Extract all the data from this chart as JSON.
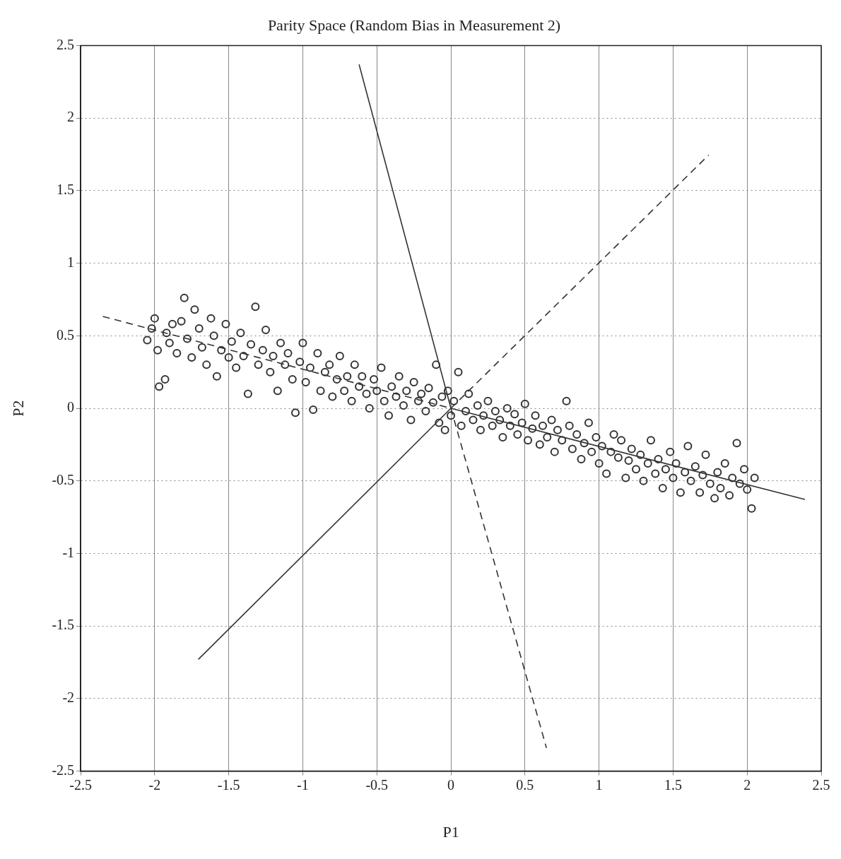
{
  "chart_data": {
    "type": "scatter",
    "title": "Parity Space (Random Bias in Measurement 2)",
    "xlabel": "P1",
    "ylabel": "P2",
    "xlim": [
      -2.5,
      2.5
    ],
    "ylim": [
      -2.5,
      2.5
    ],
    "xticks": [
      -2.5,
      -2,
      -1.5,
      -1,
      -0.5,
      0,
      0.5,
      1,
      1.5,
      2,
      2.5
    ],
    "yticks": [
      -2.5,
      -2,
      -1.5,
      -1,
      -0.5,
      0,
      0.5,
      1,
      1.5,
      2,
      2.5
    ],
    "grid": true,
    "legend": false,
    "series": [
      {
        "type": "scatter",
        "color": "#333333",
        "marker": "circle",
        "x": [
          -2.05,
          -2.02,
          -2.0,
          -1.98,
          -1.97,
          -1.93,
          -1.92,
          -1.9,
          -1.88,
          -1.85,
          -1.82,
          -1.8,
          -1.78,
          -1.75,
          -1.73,
          -1.7,
          -1.68,
          -1.65,
          -1.62,
          -1.6,
          -1.58,
          -1.55,
          -1.52,
          -1.5,
          -1.48,
          -1.45,
          -1.42,
          -1.4,
          -1.37,
          -1.35,
          -1.32,
          -1.3,
          -1.27,
          -1.25,
          -1.22,
          -1.2,
          -1.17,
          -1.15,
          -1.12,
          -1.1,
          -1.07,
          -1.05,
          -1.02,
          -1.0,
          -0.98,
          -0.95,
          -0.93,
          -0.9,
          -0.88,
          -0.85,
          -0.82,
          -0.8,
          -0.77,
          -0.75,
          -0.72,
          -0.7,
          -0.67,
          -0.65,
          -0.62,
          -0.6,
          -0.57,
          -0.55,
          -0.52,
          -0.5,
          -0.47,
          -0.45,
          -0.42,
          -0.4,
          -0.37,
          -0.35,
          -0.32,
          -0.3,
          -0.27,
          -0.25,
          -0.22,
          -0.2,
          -0.17,
          -0.15,
          -0.12,
          -0.1,
          -0.08,
          -0.06,
          -0.04,
          -0.02,
          0.0,
          0.02,
          0.05,
          0.07,
          0.1,
          0.12,
          0.15,
          0.18,
          0.2,
          0.22,
          0.25,
          0.28,
          0.3,
          0.33,
          0.35,
          0.38,
          0.4,
          0.43,
          0.45,
          0.48,
          0.5,
          0.52,
          0.55,
          0.57,
          0.6,
          0.62,
          0.65,
          0.68,
          0.7,
          0.72,
          0.75,
          0.78,
          0.8,
          0.82,
          0.85,
          0.88,
          0.9,
          0.93,
          0.95,
          0.98,
          1.0,
          1.02,
          1.05,
          1.08,
          1.1,
          1.13,
          1.15,
          1.18,
          1.2,
          1.22,
          1.25,
          1.28,
          1.3,
          1.33,
          1.35,
          1.38,
          1.4,
          1.43,
          1.45,
          1.48,
          1.5,
          1.52,
          1.55,
          1.58,
          1.6,
          1.62,
          1.65,
          1.68,
          1.7,
          1.72,
          1.75,
          1.78,
          1.8,
          1.82,
          1.85,
          1.88,
          1.9,
          1.93,
          1.95,
          1.98,
          2.0,
          2.03,
          2.05
        ],
        "values": [
          0.47,
          0.55,
          0.62,
          0.4,
          0.15,
          0.2,
          0.52,
          0.45,
          0.58,
          0.38,
          0.6,
          0.76,
          0.48,
          0.35,
          0.68,
          0.55,
          0.42,
          0.3,
          0.62,
          0.5,
          0.22,
          0.4,
          0.58,
          0.35,
          0.46,
          0.28,
          0.52,
          0.36,
          0.1,
          0.44,
          0.7,
          0.3,
          0.4,
          0.54,
          0.25,
          0.36,
          0.12,
          0.45,
          0.3,
          0.38,
          0.2,
          -0.03,
          0.32,
          0.45,
          0.18,
          0.28,
          -0.01,
          0.38,
          0.12,
          0.25,
          0.3,
          0.08,
          0.2,
          0.36,
          0.12,
          0.22,
          0.05,
          0.3,
          0.15,
          0.22,
          0.1,
          0.0,
          0.2,
          0.12,
          0.28,
          0.05,
          -0.05,
          0.15,
          0.08,
          0.22,
          0.02,
          0.12,
          -0.08,
          0.18,
          0.05,
          0.1,
          -0.02,
          0.14,
          0.04,
          0.3,
          -0.1,
          0.08,
          -0.15,
          0.12,
          -0.05,
          0.05,
          0.25,
          -0.12,
          -0.02,
          0.1,
          -0.08,
          0.02,
          -0.15,
          -0.05,
          0.05,
          -0.12,
          -0.02,
          -0.08,
          -0.2,
          0.0,
          -0.12,
          -0.04,
          -0.18,
          -0.1,
          0.03,
          -0.22,
          -0.14,
          -0.05,
          -0.25,
          -0.12,
          -0.2,
          -0.08,
          -0.3,
          -0.15,
          -0.22,
          0.05,
          -0.12,
          -0.28,
          -0.18,
          -0.35,
          -0.24,
          -0.1,
          -0.3,
          -0.2,
          -0.38,
          -0.26,
          -0.45,
          -0.3,
          -0.18,
          -0.34,
          -0.22,
          -0.48,
          -0.36,
          -0.28,
          -0.42,
          -0.32,
          -0.5,
          -0.38,
          -0.22,
          -0.45,
          -0.35,
          -0.55,
          -0.42,
          -0.3,
          -0.48,
          -0.38,
          -0.58,
          -0.44,
          -0.26,
          -0.5,
          -0.4,
          -0.58,
          -0.46,
          -0.32,
          -0.52,
          -0.62,
          -0.44,
          -0.55,
          -0.38,
          -0.6,
          -0.48,
          -0.24,
          -0.52,
          -0.42,
          -0.56,
          -0.69,
          -0.48
        ]
      },
      {
        "type": "line",
        "color": "#333333",
        "line_style": "solid",
        "marker": "none",
        "x": [
          -0.62,
          0
        ],
        "values": [
          2.37,
          0
        ]
      },
      {
        "type": "line",
        "color": "#333333",
        "line_style": "dashed",
        "marker": "none",
        "x": [
          0,
          0.645
        ],
        "values": [
          0,
          -2.34
        ]
      },
      {
        "type": "line",
        "color": "#333333",
        "line_style": "solid",
        "marker": "none",
        "x": [
          -1.705,
          0
        ],
        "values": [
          -1.73,
          0
        ]
      },
      {
        "type": "line",
        "color": "#333333",
        "line_style": "dashed",
        "marker": "none",
        "x": [
          0,
          1.74
        ],
        "values": [
          0,
          1.745
        ]
      },
      {
        "type": "line",
        "color": "#333333",
        "line_style": "dashed",
        "marker": "none",
        "x": [
          -2.35,
          0
        ],
        "values": [
          0.633,
          0
        ]
      },
      {
        "type": "line",
        "color": "#333333",
        "line_style": "solid",
        "marker": "none",
        "x": [
          0,
          2.39
        ],
        "values": [
          0,
          -0.628
        ]
      }
    ]
  }
}
